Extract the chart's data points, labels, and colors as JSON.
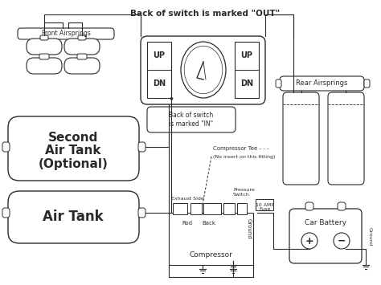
{
  "bg_color": "#ffffff",
  "line_color": "#2a2a2a",
  "figsize": [
    4.74,
    3.55
  ],
  "dpi": 100,
  "title_text": "Back of switch is marked \"OUT\"",
  "in_bubble_text": "Back of switch\nis marked \"IN\"",
  "front_label": "Front Airsprings",
  "rear_label": "Rear Airsprings",
  "second_tank_lines": [
    "Second",
    "Air Tank",
    "(Optional)"
  ],
  "air_tank_label": "Air Tank",
  "compressor_label": "Compressor",
  "battery_label": "Car Battery",
  "compressor_tee_line1": "Compressor Tee - - -",
  "compressor_tee_line2": "(No insert on this fitting)",
  "exhaust_label": "Exhaust Side",
  "pressure_label": "Pressure\nSwitch",
  "rod_label": "Rod",
  "back_label": "Back",
  "ground_label": "Ground",
  "fuse_label": "10 AMP\nFuse",
  "ground_label2": "Ground"
}
